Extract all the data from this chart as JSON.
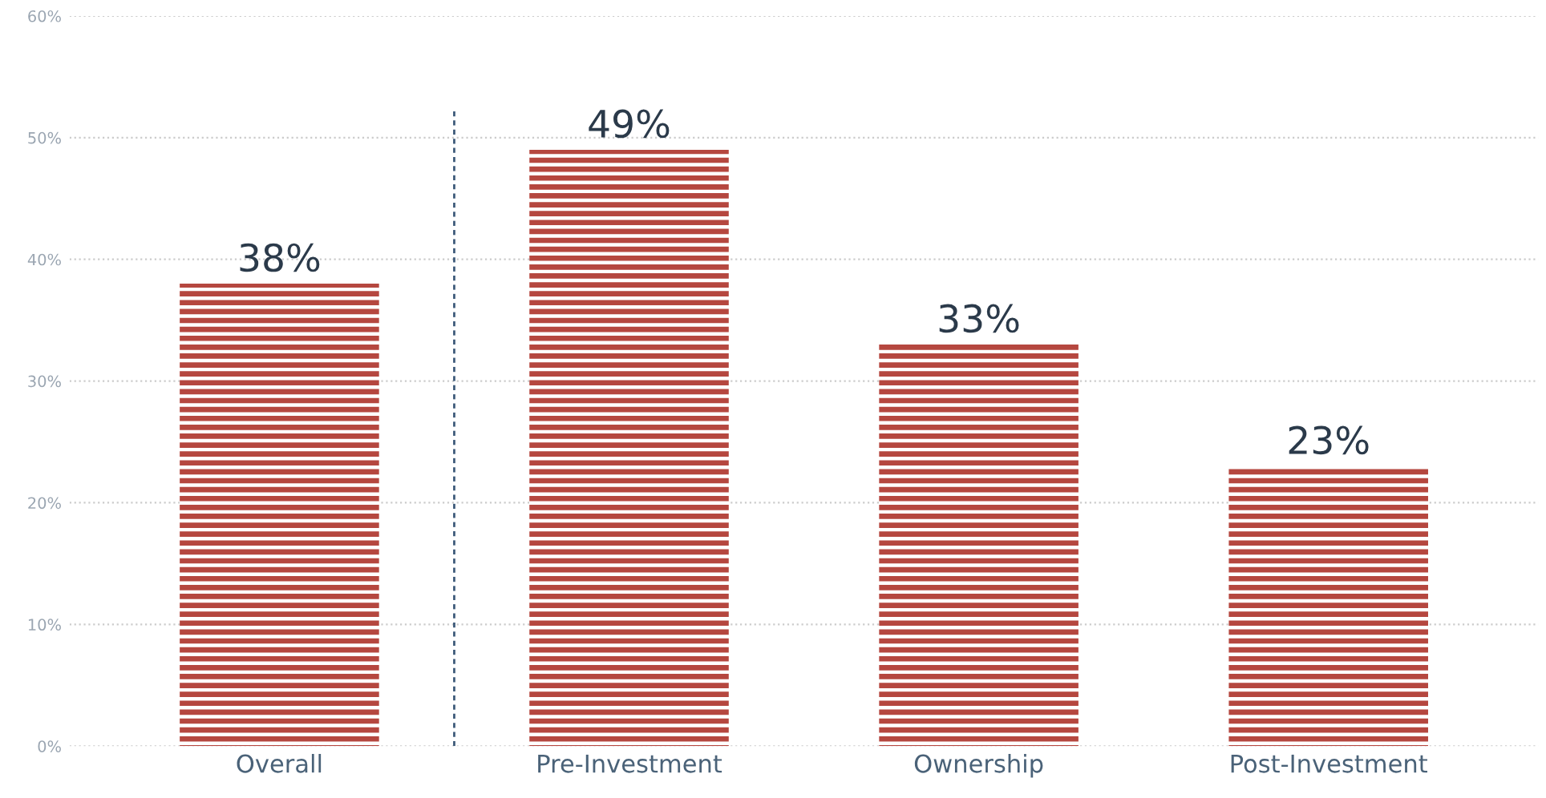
{
  "chart_data": {
    "type": "bar",
    "categories": [
      "Overall",
      "Pre-Investment",
      "Ownership",
      "Post-Investment"
    ],
    "values": [
      38,
      49,
      33,
      23
    ],
    "value_labels": [
      "38%",
      "49%",
      "33%",
      "23%"
    ],
    "color": "#b5473f",
    "ylim": [
      0,
      60
    ],
    "yticks": [
      {
        "value": 0,
        "label": "0%"
      },
      {
        "value": 10,
        "label": "10%"
      },
      {
        "value": 20,
        "label": "20%"
      },
      {
        "value": 30,
        "label": "30%"
      },
      {
        "value": 40,
        "label": "40%"
      },
      {
        "value": 50,
        "label": "50%"
      },
      {
        "value": 60,
        "label": "60%"
      }
    ],
    "grid": "y"
  }
}
